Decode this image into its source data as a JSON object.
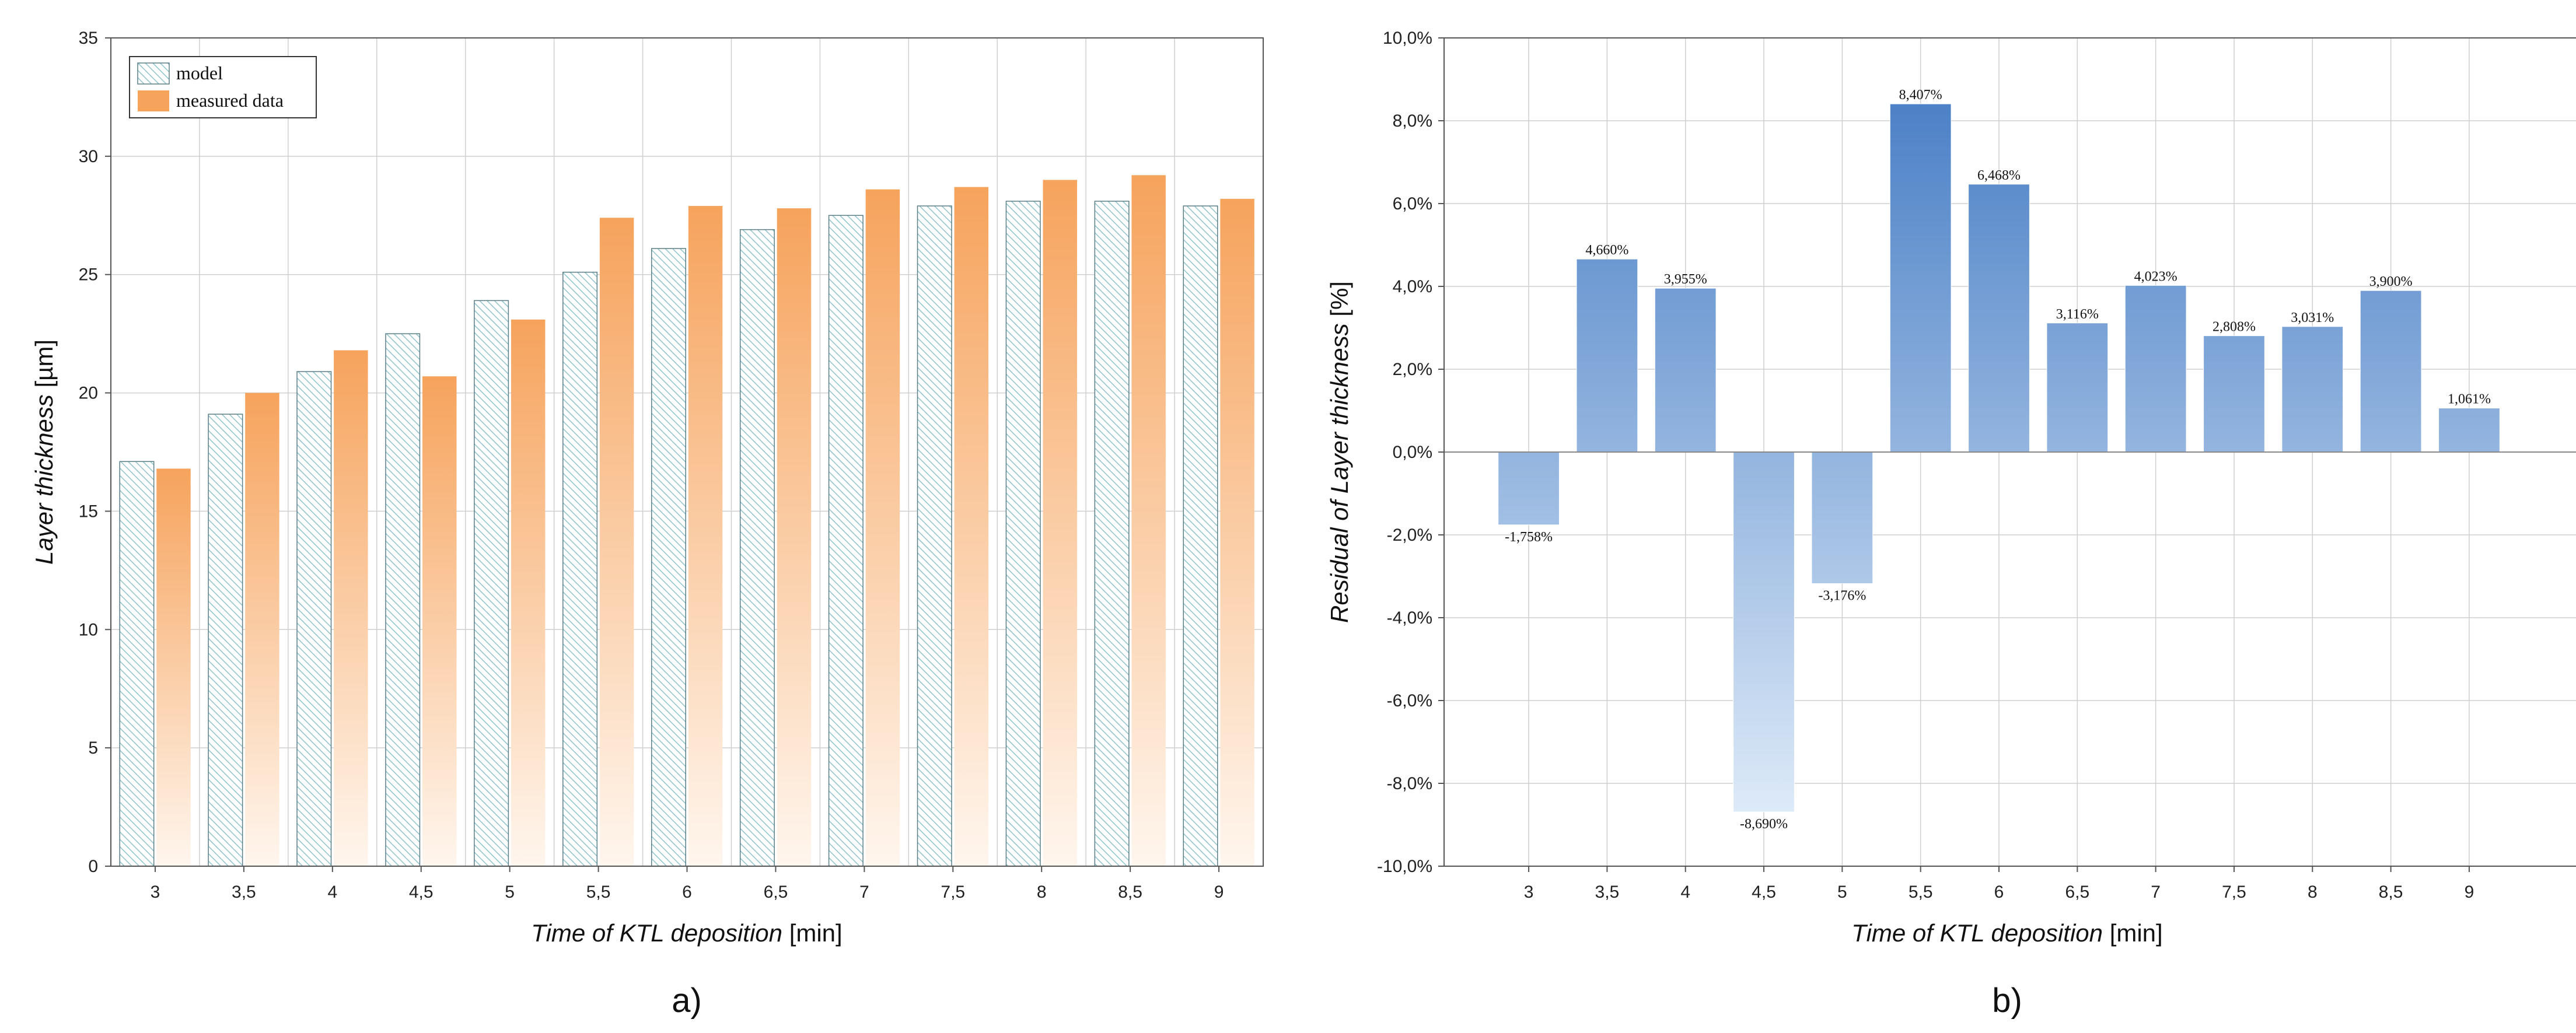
{
  "colors": {
    "model_stroke": "#5a7f86",
    "model_hatch": "#8fc3cc",
    "measured_top": "#f6a35c",
    "measured_bottom": "#fff6ee",
    "residual_top": "#4b80c6",
    "residual_bottom": "#e8f2fc",
    "grid": "#cfcfcf",
    "axis": "#555555"
  },
  "chart_data": [
    {
      "type": "bar",
      "panel_label": "a)",
      "categories": [
        "3",
        "3,5",
        "4",
        "4,5",
        "5",
        "5,5",
        "6",
        "6,5",
        "7",
        "7,5",
        "8",
        "8,5",
        "9"
      ],
      "series": [
        {
          "name": "model",
          "values": [
            17.1,
            19.1,
            20.9,
            22.5,
            23.9,
            25.1,
            26.1,
            26.9,
            27.5,
            27.9,
            28.1,
            28.1,
            27.9
          ]
        },
        {
          "name": "measured data",
          "values": [
            16.8,
            20.0,
            21.8,
            20.7,
            23.1,
            27.4,
            27.9,
            27.8,
            28.6,
            28.7,
            29.0,
            29.2,
            28.2
          ]
        }
      ],
      "xlabel_italic": "Time of KTL deposition",
      "xlabel_unit": " [min]",
      "ylabel_italic": "Layer thickness",
      "ylabel_unit": " [µm]",
      "ylim": [
        0,
        35
      ],
      "yticks": [
        0,
        5,
        10,
        15,
        20,
        25,
        30,
        35
      ],
      "ytick_labels": [
        "0",
        "5",
        "10",
        "15",
        "20",
        "25",
        "30",
        "35"
      ],
      "grid": true,
      "legend": "top-left"
    },
    {
      "type": "bar",
      "panel_label": "b)",
      "categories": [
        "3",
        "3,5",
        "4",
        "4,5",
        "5",
        "5,5",
        "6",
        "6,5",
        "7",
        "7,5",
        "8",
        "8,5",
        "9"
      ],
      "values": [
        -1.758,
        4.66,
        3.955,
        -8.69,
        -3.176,
        8.407,
        6.468,
        3.116,
        4.023,
        2.808,
        3.031,
        3.9,
        1.061
      ],
      "data_labels": [
        "-1,758%",
        "4,660%",
        "3,955%",
        "-8,690%",
        "-3,176%",
        "8,407%",
        "6,468%",
        "3,116%",
        "4,023%",
        "2,808%",
        "3,031%",
        "3,900%",
        "1,061%"
      ],
      "xlabel_italic": "Time of KTL deposition",
      "xlabel_unit": " [min]",
      "ylabel_italic": "Residual of Layer thickness",
      "ylabel_unit": " [%]",
      "ylim": [
        -10,
        10
      ],
      "yticks": [
        -10,
        -8,
        -6,
        -4,
        -2,
        0,
        2,
        4,
        6,
        8,
        10
      ],
      "ytick_labels": [
        "-10,0%",
        "-8,0%",
        "-6,0%",
        "-4,0%",
        "-2,0%",
        "0,0%",
        "2,0%",
        "4,0%",
        "6,0%",
        "8,0%",
        "10,0%"
      ],
      "grid": true,
      "legend": "none"
    }
  ]
}
